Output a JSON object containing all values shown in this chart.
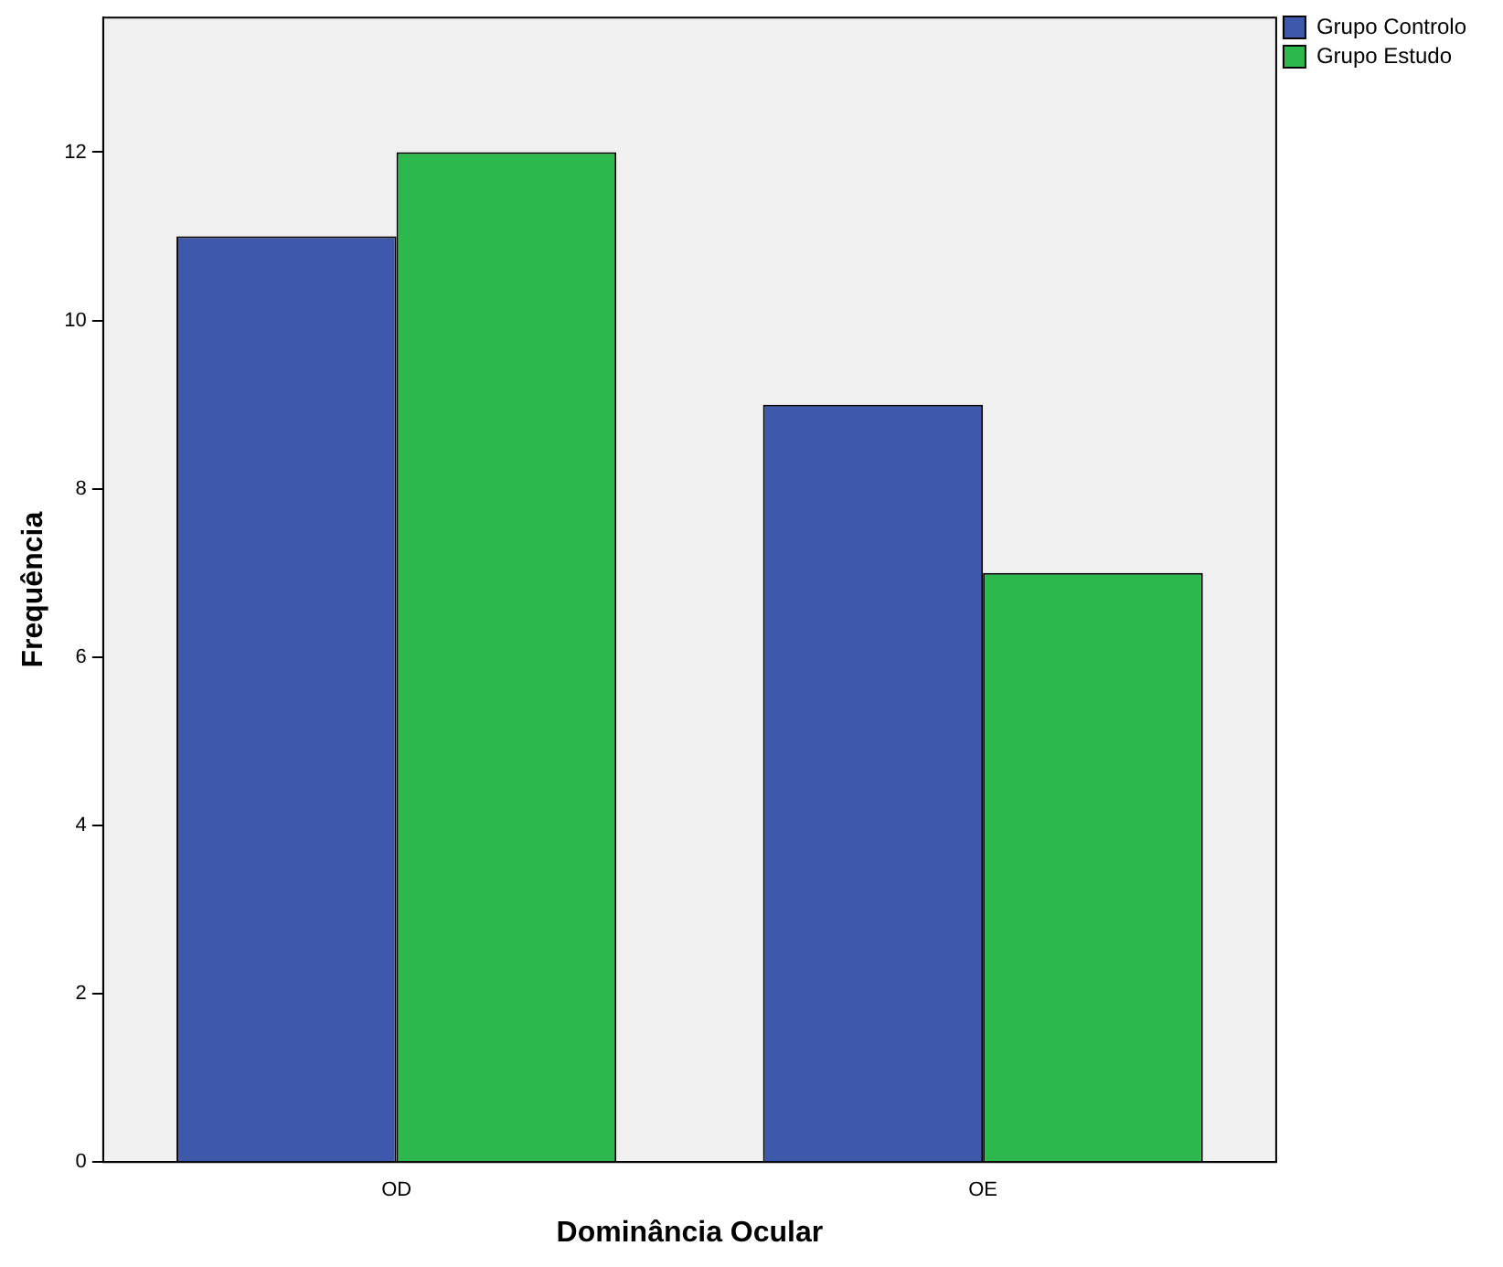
{
  "chart_data": {
    "type": "bar",
    "xlabel": "Dominância Ocular",
    "ylabel": "Frequência",
    "categories": [
      "OD",
      "OE"
    ],
    "series": [
      {
        "name": "Grupo Controlo",
        "color": "#3e58ac",
        "values": [
          11,
          9
        ]
      },
      {
        "name": "Grupo Estudo",
        "color": "#2db84d",
        "values": [
          12,
          7
        ]
      }
    ],
    "ylim": [
      0,
      13.6
    ],
    "yticks": [
      0,
      2,
      4,
      6,
      8,
      10,
      12
    ],
    "grid": false,
    "legend": "top right"
  }
}
